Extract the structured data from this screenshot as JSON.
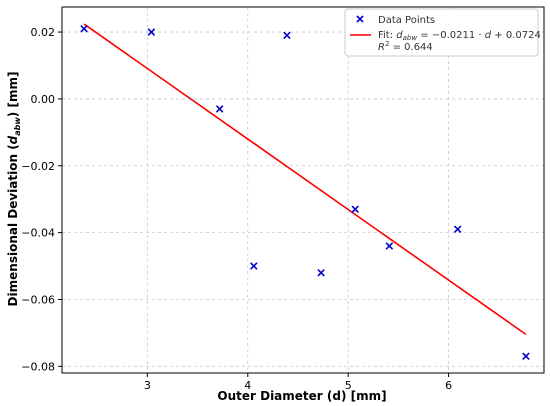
{
  "chart_data": {
    "type": "scatter",
    "title": "",
    "xlabel": "Outer Diameter (d) [mm]",
    "ylabel": "Dimensional Deviation (d_abw) [mm]",
    "xlim": [
      2.15,
      6.95
    ],
    "ylim": [
      -0.082,
      0.0275
    ],
    "xticks": [
      3,
      4,
      5,
      6
    ],
    "yticks": [
      0.02,
      0.0,
      -0.02,
      -0.04,
      -0.06,
      -0.08
    ],
    "xtick_labels": [
      "3",
      "4",
      "5",
      "6"
    ],
    "ytick_labels": [
      "0.02",
      "0.00",
      "−0.02",
      "−0.04",
      "−0.06",
      "−0.08"
    ],
    "grid": true,
    "legend_position": "top-right",
    "series": [
      {
        "name": "Data Points",
        "kind": "scatter",
        "marker": "x",
        "color": "#0000cc",
        "x": [
          2.37,
          3.04,
          3.72,
          4.06,
          4.39,
          4.73,
          5.07,
          5.41,
          6.09,
          6.77
        ],
        "y": [
          0.021,
          0.02,
          -0.003,
          -0.05,
          0.019,
          -0.052,
          -0.033,
          -0.044,
          -0.039,
          -0.077
        ]
      },
      {
        "name": "Fit",
        "kind": "line",
        "color": "#ff0000",
        "slope": -0.0211,
        "intercept": 0.0724,
        "x_range": [
          2.37,
          6.77
        ]
      }
    ],
    "legend": [
      {
        "label": "Data Points",
        "marker": "x",
        "color": "#0000cc"
      },
      {
        "label": "Fit: d_abw = −0.0211 · d + 0.0724",
        "line2": "R² = 0.644",
        "marker": "line",
        "color": "#ff0000"
      }
    ]
  }
}
